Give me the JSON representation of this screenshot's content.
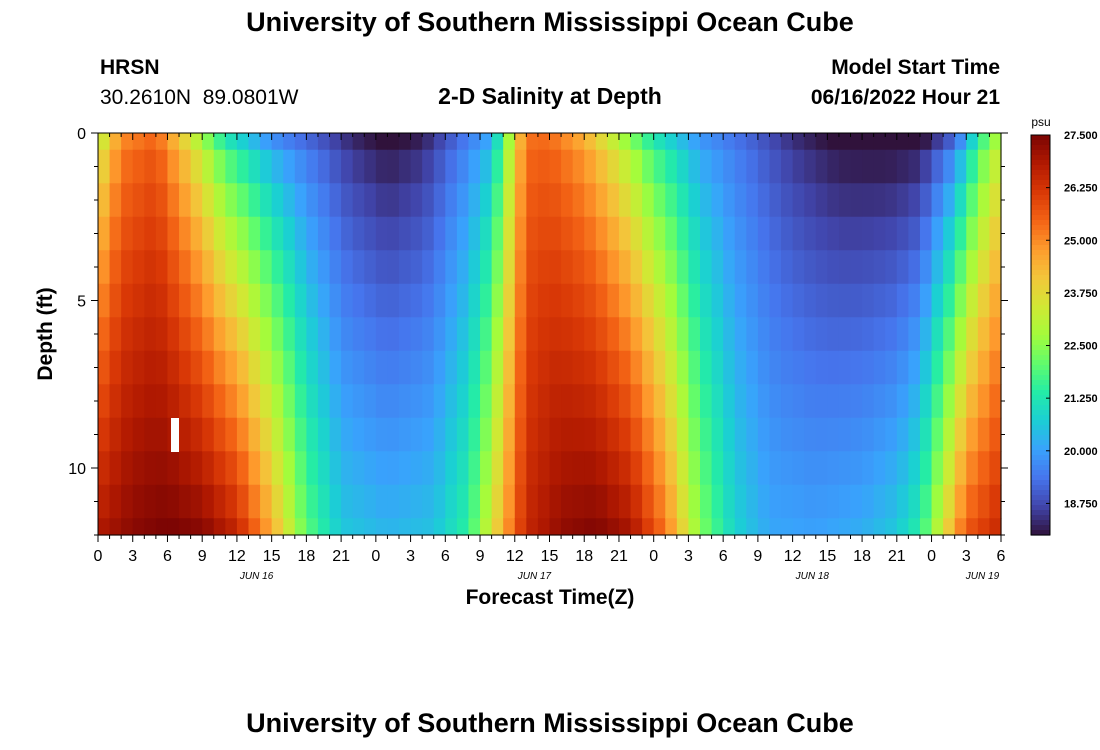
{
  "header": {
    "title": "University of Southern Mississippi Ocean Cube",
    "station_id": "HRSN",
    "station_coords": "30.2610N  89.0801W",
    "chart_title": "2-D Salinity at Depth",
    "model_start_label": "Model Start Time",
    "model_start_value": "06/16/2022 Hour 21"
  },
  "footer": {
    "title": "University of Southern Mississippi Ocean Cube"
  },
  "chart_data": {
    "type": "heatmap",
    "title": "2-D Salinity at Depth",
    "xlabel": "Forecast Time(Z)",
    "ylabel": "Depth (ft)",
    "x_tick_labels": [
      "0",
      "3",
      "6",
      "9",
      "12",
      "15",
      "18",
      "21",
      "0",
      "3",
      "6",
      "9",
      "12",
      "15",
      "18",
      "21",
      "0",
      "3",
      "6",
      "9",
      "12",
      "15",
      "18",
      "21",
      "0",
      "3",
      "6"
    ],
    "date_labels": [
      "JUN 16",
      "JUN 17",
      "JUN 18",
      "JUN 19"
    ],
    "y_ticks": [
      0,
      5,
      10
    ],
    "ylim": [
      12,
      0
    ],
    "x_hours_range": [
      0,
      78
    ],
    "depths_ft": [
      0,
      1,
      2,
      3,
      4,
      5,
      6,
      7,
      8,
      9,
      10,
      11,
      12
    ],
    "colorbar": {
      "unit": "psu",
      "tick_labels": [
        "27.500",
        "26.250",
        "25.000",
        "23.750",
        "22.500",
        "21.250",
        "20.000",
        "18.750"
      ],
      "range": [
        18.0,
        27.5
      ]
    },
    "salinity_psu": {
      "surface": [
        [
          0,
          23.0
        ],
        [
          2,
          25.0
        ],
        [
          5,
          25.5
        ],
        [
          8,
          23.5
        ],
        [
          11,
          21.3
        ],
        [
          15,
          19.8
        ],
        [
          19,
          19.0
        ],
        [
          22,
          18.3
        ],
        [
          25,
          17.9
        ],
        [
          28,
          18.2
        ],
        [
          31,
          19.2
        ],
        [
          34,
          20.2
        ],
        [
          35.5,
          22.8
        ],
        [
          37,
          25.3
        ],
        [
          39,
          25.4
        ],
        [
          42,
          24.5
        ],
        [
          45,
          23.0
        ],
        [
          48,
          21.3
        ],
        [
          52,
          19.9
        ],
        [
          56,
          19.2
        ],
        [
          60,
          18.4
        ],
        [
          64,
          17.9
        ],
        [
          68,
          17.8
        ],
        [
          71,
          17.9
        ],
        [
          74,
          19.2
        ],
        [
          77,
          22.4
        ],
        [
          78,
          23.0
        ]
      ],
      "bottom": [
        [
          0,
          26.8
        ],
        [
          3,
          27.3
        ],
        [
          6,
          27.5
        ],
        [
          9,
          27.3
        ],
        [
          12,
          26.5
        ],
        [
          15,
          24.5
        ],
        [
          18,
          22.0
        ],
        [
          21,
          20.6
        ],
        [
          25,
          20.3
        ],
        [
          29,
          20.5
        ],
        [
          32,
          21.5
        ],
        [
          35,
          24.5
        ],
        [
          37,
          26.5
        ],
        [
          40,
          27.2
        ],
        [
          43,
          27.4
        ],
        [
          46,
          26.9
        ],
        [
          49,
          25.2
        ],
        [
          52,
          22.4
        ],
        [
          55,
          20.8
        ],
        [
          58,
          20.1
        ],
        [
          62,
          20.0
        ],
        [
          66,
          20.2
        ],
        [
          69,
          20.6
        ],
        [
          71,
          21.4
        ],
        [
          73,
          23.5
        ],
        [
          75,
          25.6
        ],
        [
          78,
          26.5
        ]
      ]
    },
    "colors": {
      "palette": [
        "#30123b",
        "#4145ab",
        "#4675ed",
        "#39a2fc",
        "#1bcfd4",
        "#24eca6",
        "#61fc6c",
        "#a4fc3b",
        "#d1e834",
        "#f3c63a",
        "#fe9b2d",
        "#f36315",
        "#d93806",
        "#b11901",
        "#7a0403"
      ],
      "marker": "#ffffff"
    }
  }
}
